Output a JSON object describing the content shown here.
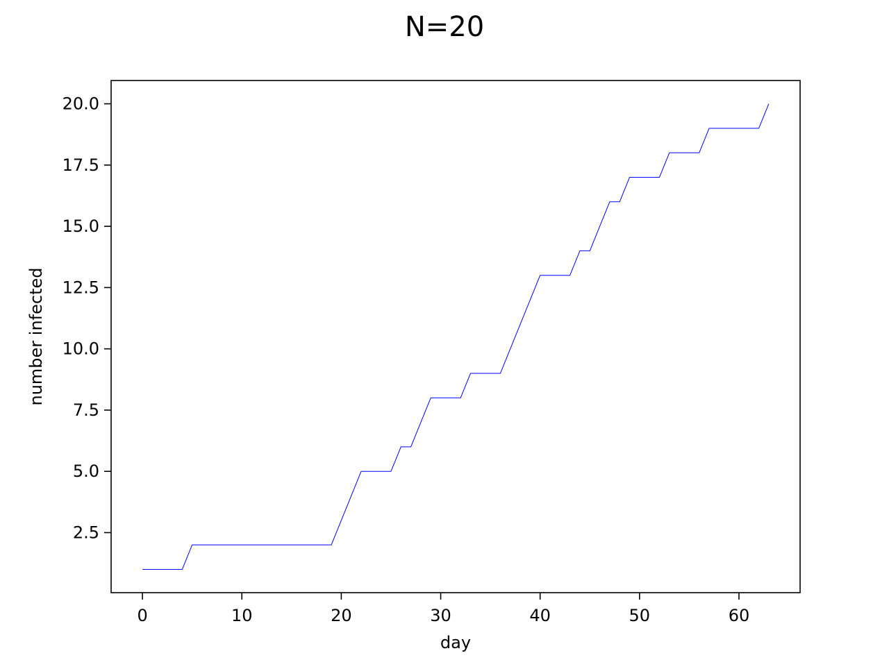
{
  "chart_data": {
    "type": "line",
    "title": "N=20",
    "xlabel": "day",
    "ylabel": "number infected",
    "xlim": [
      -3.15,
      66.15
    ],
    "ylim": [
      0.05,
      20.95
    ],
    "xticks": [
      0,
      10,
      20,
      30,
      40,
      50,
      60
    ],
    "xtick_labels": [
      "0",
      "10",
      "20",
      "30",
      "40",
      "50",
      "60"
    ],
    "yticks": [
      2.5,
      5.0,
      7.5,
      10.0,
      12.5,
      15.0,
      17.5,
      20.0
    ],
    "ytick_labels": [
      "2.5",
      "5.0",
      "7.5",
      "10.0",
      "12.5",
      "15.0",
      "17.5",
      "20.0"
    ],
    "grid": false,
    "series": [
      {
        "color": "#0000ff",
        "x": [
          0,
          1,
          2,
          3,
          4,
          5,
          6,
          7,
          8,
          9,
          10,
          11,
          12,
          13,
          14,
          15,
          16,
          17,
          18,
          19,
          20,
          21,
          22,
          23,
          24,
          25,
          26,
          27,
          28,
          29,
          30,
          31,
          32,
          33,
          34,
          35,
          36,
          37,
          38,
          39,
          40,
          41,
          42,
          43,
          44,
          45,
          46,
          47,
          48,
          49,
          50,
          51,
          52,
          53,
          54,
          55,
          56,
          57,
          58,
          59,
          60,
          61,
          62,
          63
        ],
        "y": [
          1,
          1,
          1,
          1,
          1,
          2,
          2,
          2,
          2,
          2,
          2,
          2,
          2,
          2,
          2,
          2,
          2,
          2,
          2,
          2,
          3,
          4,
          5,
          5,
          5,
          5,
          6,
          6,
          7,
          8,
          8,
          8,
          8,
          9,
          9,
          9,
          9,
          10,
          11,
          12,
          13,
          13,
          13,
          13,
          14,
          14,
          15,
          16,
          16,
          17,
          17,
          17,
          17,
          18,
          18,
          18,
          18,
          19,
          19,
          19,
          19,
          19,
          19,
          20
        ]
      }
    ]
  }
}
